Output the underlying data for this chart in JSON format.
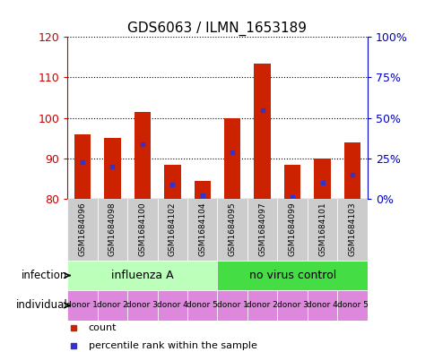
{
  "title": "GDS6063 / ILMN_1653189",
  "samples": [
    "GSM1684096",
    "GSM1684098",
    "GSM1684100",
    "GSM1684102",
    "GSM1684104",
    "GSM1684095",
    "GSM1684097",
    "GSM1684099",
    "GSM1684101",
    "GSM1684103"
  ],
  "bar_heights": [
    96,
    95,
    101.5,
    88.5,
    84.5,
    100,
    113.5,
    88.5,
    90,
    94
  ],
  "blue_markers": [
    89,
    88,
    93.5,
    83.5,
    81,
    91.5,
    102,
    80.5,
    84,
    86
  ],
  "ymin": 80,
  "ymax": 120,
  "yticks_left": [
    80,
    90,
    100,
    110,
    120
  ],
  "ytick_labels_right": [
    "0%",
    "25%",
    "50%",
    "75%",
    "100%"
  ],
  "yticks_right_vals": [
    0,
    25,
    50,
    75,
    100
  ],
  "bar_color": "#cc2200",
  "blue_color": "#3333cc",
  "bar_width": 0.55,
  "infection_groups": [
    {
      "label": "influenza A",
      "start": 0,
      "end": 5,
      "color": "#bbffbb"
    },
    {
      "label": "no virus control",
      "start": 5,
      "end": 10,
      "color": "#44dd44"
    }
  ],
  "individual_labels": [
    "donor 1",
    "donor 2",
    "donor 3",
    "donor 4",
    "donor 5",
    "donor 1",
    "donor 2",
    "donor 3",
    "donor 4",
    "donor 5"
  ],
  "individual_color": "#dd88dd",
  "sample_bg_color": "#cccccc",
  "legend_count_color": "#cc2200",
  "legend_blue_color": "#3333cc",
  "legend_count_label": "count",
  "legend_blue_label": "percentile rank within the sample",
  "infection_label": "infection",
  "individual_label": "individual",
  "left_axis_color": "#cc0000",
  "right_axis_color": "#0000cc"
}
